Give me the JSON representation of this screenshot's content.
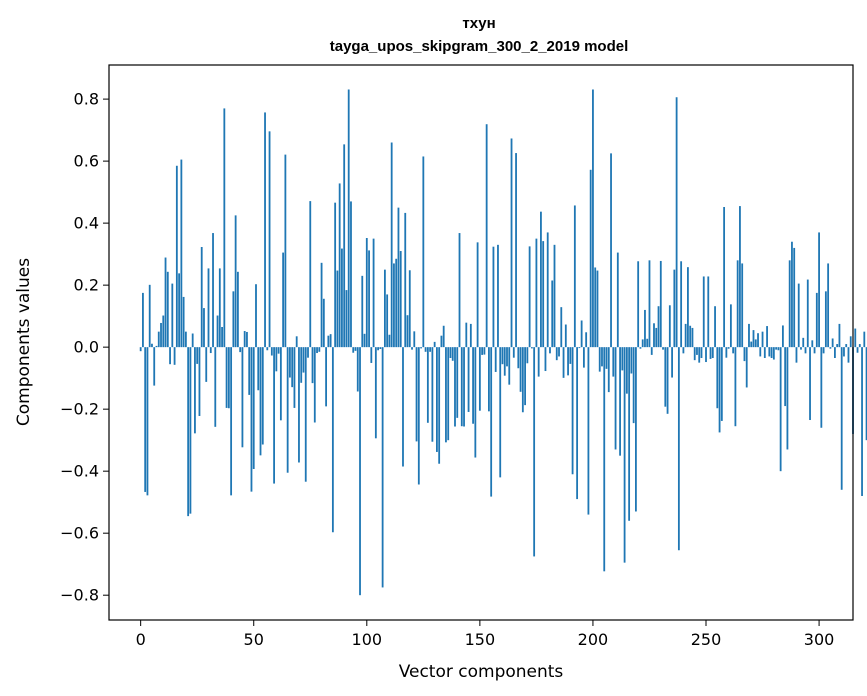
{
  "chart_data": {
    "type": "bar",
    "title": "тхун",
    "subtitle": "tayga_upos_skipgram_300_2_2019 model",
    "xlabel": "Vector components",
    "ylabel": "Components values",
    "xlim": [
      -14,
      315
    ],
    "ylim": [
      -0.88,
      0.91
    ],
    "xticks": [
      0,
      50,
      100,
      150,
      200,
      250,
      300
    ],
    "yticks": [
      -0.8,
      -0.6,
      -0.4,
      -0.2,
      0.0,
      0.2,
      0.4,
      0.6,
      0.8
    ],
    "ytick_labels": [
      "−0.8",
      "−0.6",
      "−0.4",
      "−0.2",
      "0.0",
      "0.2",
      "0.4",
      "0.6",
      "0.8"
    ],
    "bar_color": "#1f77b4",
    "values": [
      -0.013,
      0.175,
      -0.467,
      -0.478,
      0.201,
      0.011,
      -0.124,
      0.004,
      0.05,
      0.078,
      0.102,
      0.289,
      0.243,
      -0.055,
      0.205,
      -0.057,
      0.585,
      0.238,
      0.605,
      0.162,
      0.05,
      -0.545,
      -0.537,
      0.044,
      -0.278,
      -0.054,
      -0.222,
      0.323,
      0.126,
      -0.112,
      0.254,
      -0.019,
      0.368,
      -0.257,
      0.102,
      0.254,
      0.065,
      0.77,
      -0.196,
      -0.197,
      -0.478,
      0.18,
      0.425,
      0.243,
      -0.016,
      -0.323,
      0.052,
      0.049,
      -0.154,
      -0.466,
      -0.393,
      0.203,
      -0.139,
      -0.349,
      -0.314,
      0.757,
      -0.01,
      0.696,
      -0.027,
      -0.44,
      -0.078,
      -0.021,
      -0.236,
      0.305,
      0.621,
      -0.405,
      -0.098,
      -0.129,
      -0.196,
      0.035,
      -0.372,
      -0.115,
      -0.082,
      -0.434,
      -0.034,
      0.471,
      -0.116,
      -0.243,
      -0.019,
      -0.015,
      0.272,
      0.156,
      -0.191,
      0.037,
      0.042,
      -0.597,
      0.466,
      0.247,
      0.528,
      0.318,
      0.654,
      0.184,
      0.831,
      0.47,
      -0.018,
      -0.012,
      -0.143,
      -0.8,
      0.23,
      0.043,
      0.352,
      0.312,
      -0.051,
      0.35,
      -0.294,
      -0.01,
      -0.006,
      -0.775,
      0.25,
      0.17,
      0.04,
      0.66,
      0.27,
      0.285,
      0.45,
      0.31,
      -0.385,
      0.433,
      0.103,
      0.248,
      -0.008,
      0.051,
      -0.304,
      -0.443,
      -0.004,
      0.615,
      -0.015,
      -0.244,
      -0.015,
      -0.305,
      0.017,
      -0.338,
      -0.376,
      0.037,
      0.069,
      -0.307,
      -0.3,
      -0.035,
      -0.044,
      -0.256,
      -0.228,
      0.368,
      -0.255,
      -0.256,
      0.079,
      -0.209,
      0.075,
      -0.247,
      -0.356,
      0.338,
      -0.205,
      -0.025,
      -0.024,
      0.719,
      -0.207,
      -0.482,
      0.324,
      -0.08,
      0.33,
      -0.42,
      -0.055,
      -0.092,
      -0.062,
      -0.121,
      0.673,
      -0.034,
      0.626,
      -0.068,
      -0.144,
      -0.21,
      -0.187,
      -0.052,
      0.325,
      -0.004,
      -0.675,
      0.35,
      -0.095,
      0.437,
      0.342,
      -0.077,
      0.37,
      -0.02,
      0.215,
      0.33,
      -0.042,
      -0.03,
      0.129,
      -0.099,
      0.073,
      -0.091,
      -0.054,
      -0.41,
      0.457,
      -0.49,
      -0.003,
      0.086,
      -0.066,
      0.048,
      -0.54,
      0.572,
      0.831,
      0.257,
      0.247,
      -0.079,
      -0.062,
      -0.723,
      -0.07,
      -0.145,
      0.625,
      -0.095,
      -0.33,
      0.305,
      -0.35,
      -0.075,
      -0.695,
      -0.15,
      -0.56,
      -0.085,
      -0.245,
      -0.53,
      0.277,
      -0.005,
      0.025,
      0.12,
      0.027,
      0.28,
      -0.025,
      0.077,
      0.062,
      0.132,
      0.278,
      -0.008,
      -0.192,
      -0.215,
      0.135,
      -0.098,
      0.25,
      0.806,
      -0.655,
      0.277,
      -0.02,
      0.075,
      0.258,
      0.069,
      0.062,
      -0.042,
      -0.025,
      -0.05,
      -0.035,
      0.228,
      -0.048,
      0.228,
      -0.038,
      -0.035,
      0.132,
      -0.197,
      -0.275,
      -0.238,
      0.452,
      -0.034,
      -0.005,
      0.138,
      -0.02,
      -0.255,
      0.28,
      0.455,
      0.27,
      -0.045,
      -0.13,
      0.075,
      0.018,
      0.055,
      0.025,
      0.045,
      -0.03,
      0.05,
      -0.035,
      0.068,
      -0.03,
      -0.035,
      -0.04,
      -0.008,
      -0.01,
      -0.4,
      0.07,
      -0.19,
      -0.33,
      0.28,
      0.34,
      0.32,
      -0.05,
      0.205,
      -0.008,
      0.03,
      -0.02,
      0.218,
      -0.235,
      0.022,
      -0.02,
      0.175,
      0.37,
      -0.26,
      -0.02,
      0.18,
      0.27,
      -0.005,
      0.028,
      -0.035,
      0.01,
      0.075,
      -0.46,
      -0.03,
      0.01,
      -0.05,
      0.035,
      -0.28,
      0.06,
      -0.018,
      0.01,
      -0.48,
      0.05,
      -0.3,
      0.13
    ]
  }
}
